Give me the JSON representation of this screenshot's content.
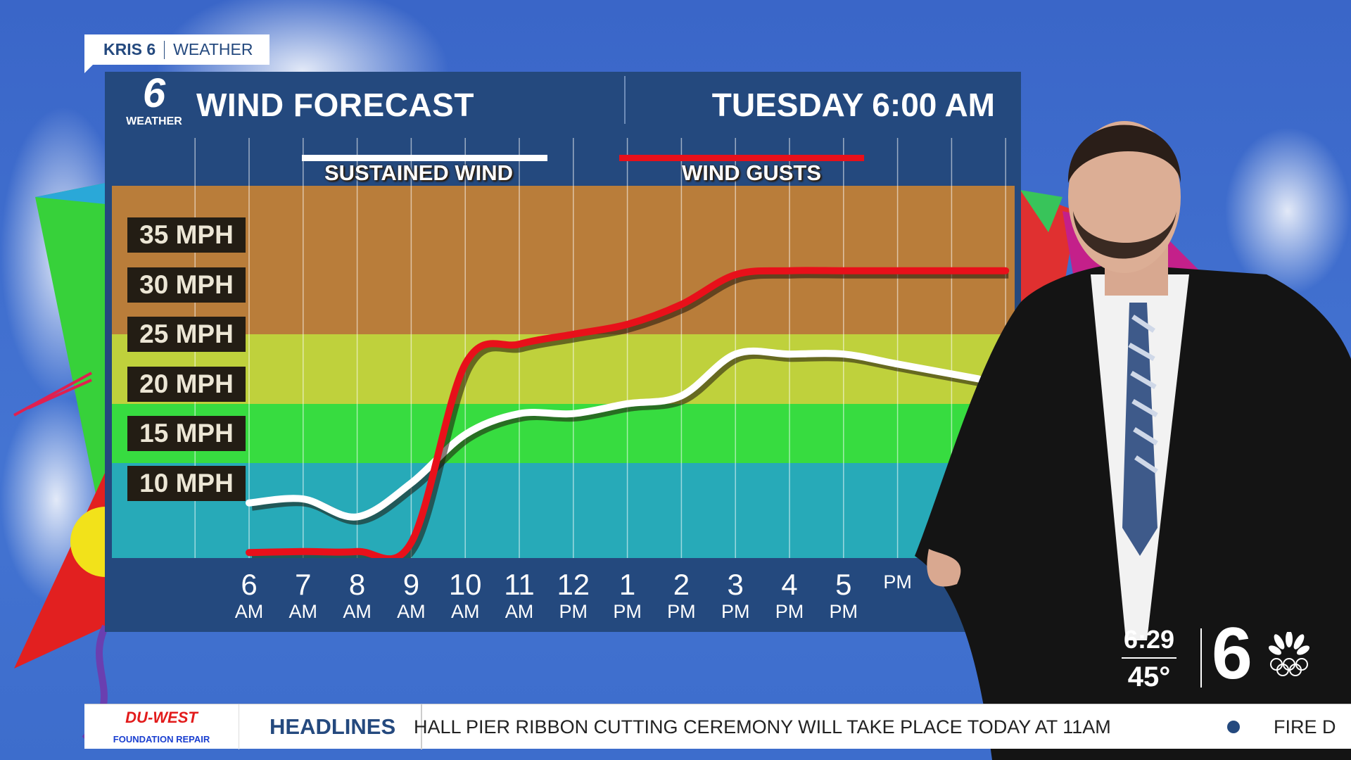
{
  "brand_tag": {
    "station": "KRIS 6",
    "section": "WEATHER"
  },
  "header": {
    "logo_number": "6",
    "logo_label": "WEATHER",
    "title": "WIND FORECAST",
    "datetime": "TUESDAY 6:00 AM"
  },
  "chart_data": {
    "type": "line",
    "title": "WIND FORECAST",
    "x": [
      "6 AM",
      "7 AM",
      "8 AM",
      "9 AM",
      "10 AM",
      "11 AM",
      "12 PM",
      "1 PM",
      "2 PM",
      "3 PM",
      "4 PM",
      "5 PM",
      "6 PM"
    ],
    "x_ticks": [
      {
        "h": "6",
        "m": "AM"
      },
      {
        "h": "7",
        "m": "AM"
      },
      {
        "h": "8",
        "m": "AM"
      },
      {
        "h": "9",
        "m": "AM"
      },
      {
        "h": "10",
        "m": "AM"
      },
      {
        "h": "11",
        "m": "AM"
      },
      {
        "h": "12",
        "m": "PM"
      },
      {
        "h": "1",
        "m": "PM"
      },
      {
        "h": "2",
        "m": "PM"
      },
      {
        "h": "3",
        "m": "PM"
      },
      {
        "h": "4",
        "m": "PM"
      },
      {
        "h": "5",
        "m": "PM"
      },
      {
        "h": "",
        "m": "PM"
      }
    ],
    "y_ticks": [
      "35 MPH",
      "30 MPH",
      "25 MPH",
      "20 MPH",
      "15 MPH",
      "10 MPH"
    ],
    "y_tick_values": [
      35,
      30,
      25,
      20,
      15,
      10
    ],
    "ylabel": "",
    "series": [
      {
        "name": "SUSTAINED WIND",
        "color": "#ffffff",
        "values": [
          8,
          8.4,
          6.6,
          10,
          14.9,
          17,
          17,
          18,
          18.8,
          23,
          23,
          23,
          22
        ]
      },
      {
        "name": "WIND GUSTS",
        "color": "#e8101a",
        "values": [
          3,
          3.1,
          3.1,
          4,
          22,
          24,
          25,
          26,
          28,
          31,
          31.4,
          31.4,
          31.4
        ]
      }
    ],
    "bands": [
      {
        "min": 25,
        "max": 40,
        "color": "#b97d3a"
      },
      {
        "min": 18,
        "max": 25,
        "color": "#bfd13c"
      },
      {
        "min": 12,
        "max": 18,
        "color": "#37dc40"
      },
      {
        "min": 0,
        "max": 12,
        "color": "#27aab8"
      }
    ],
    "legend": "top"
  },
  "ticker": {
    "sponsor_name": "DU-WEST",
    "sponsor_sub": "FOUNDATION REPAIR",
    "label": "HEADLINES",
    "story": "HALL PIER RIBBON CUTTING CEREMONY WILL TAKE PLACE TODAY AT 11AM",
    "next_story": "FIRE D"
  },
  "bug": {
    "time": "6:29",
    "temp": "45°",
    "channel": "6"
  },
  "colors": {
    "panel": "#24497e",
    "sky": "#3d6dcc",
    "accent": "#24497e"
  }
}
